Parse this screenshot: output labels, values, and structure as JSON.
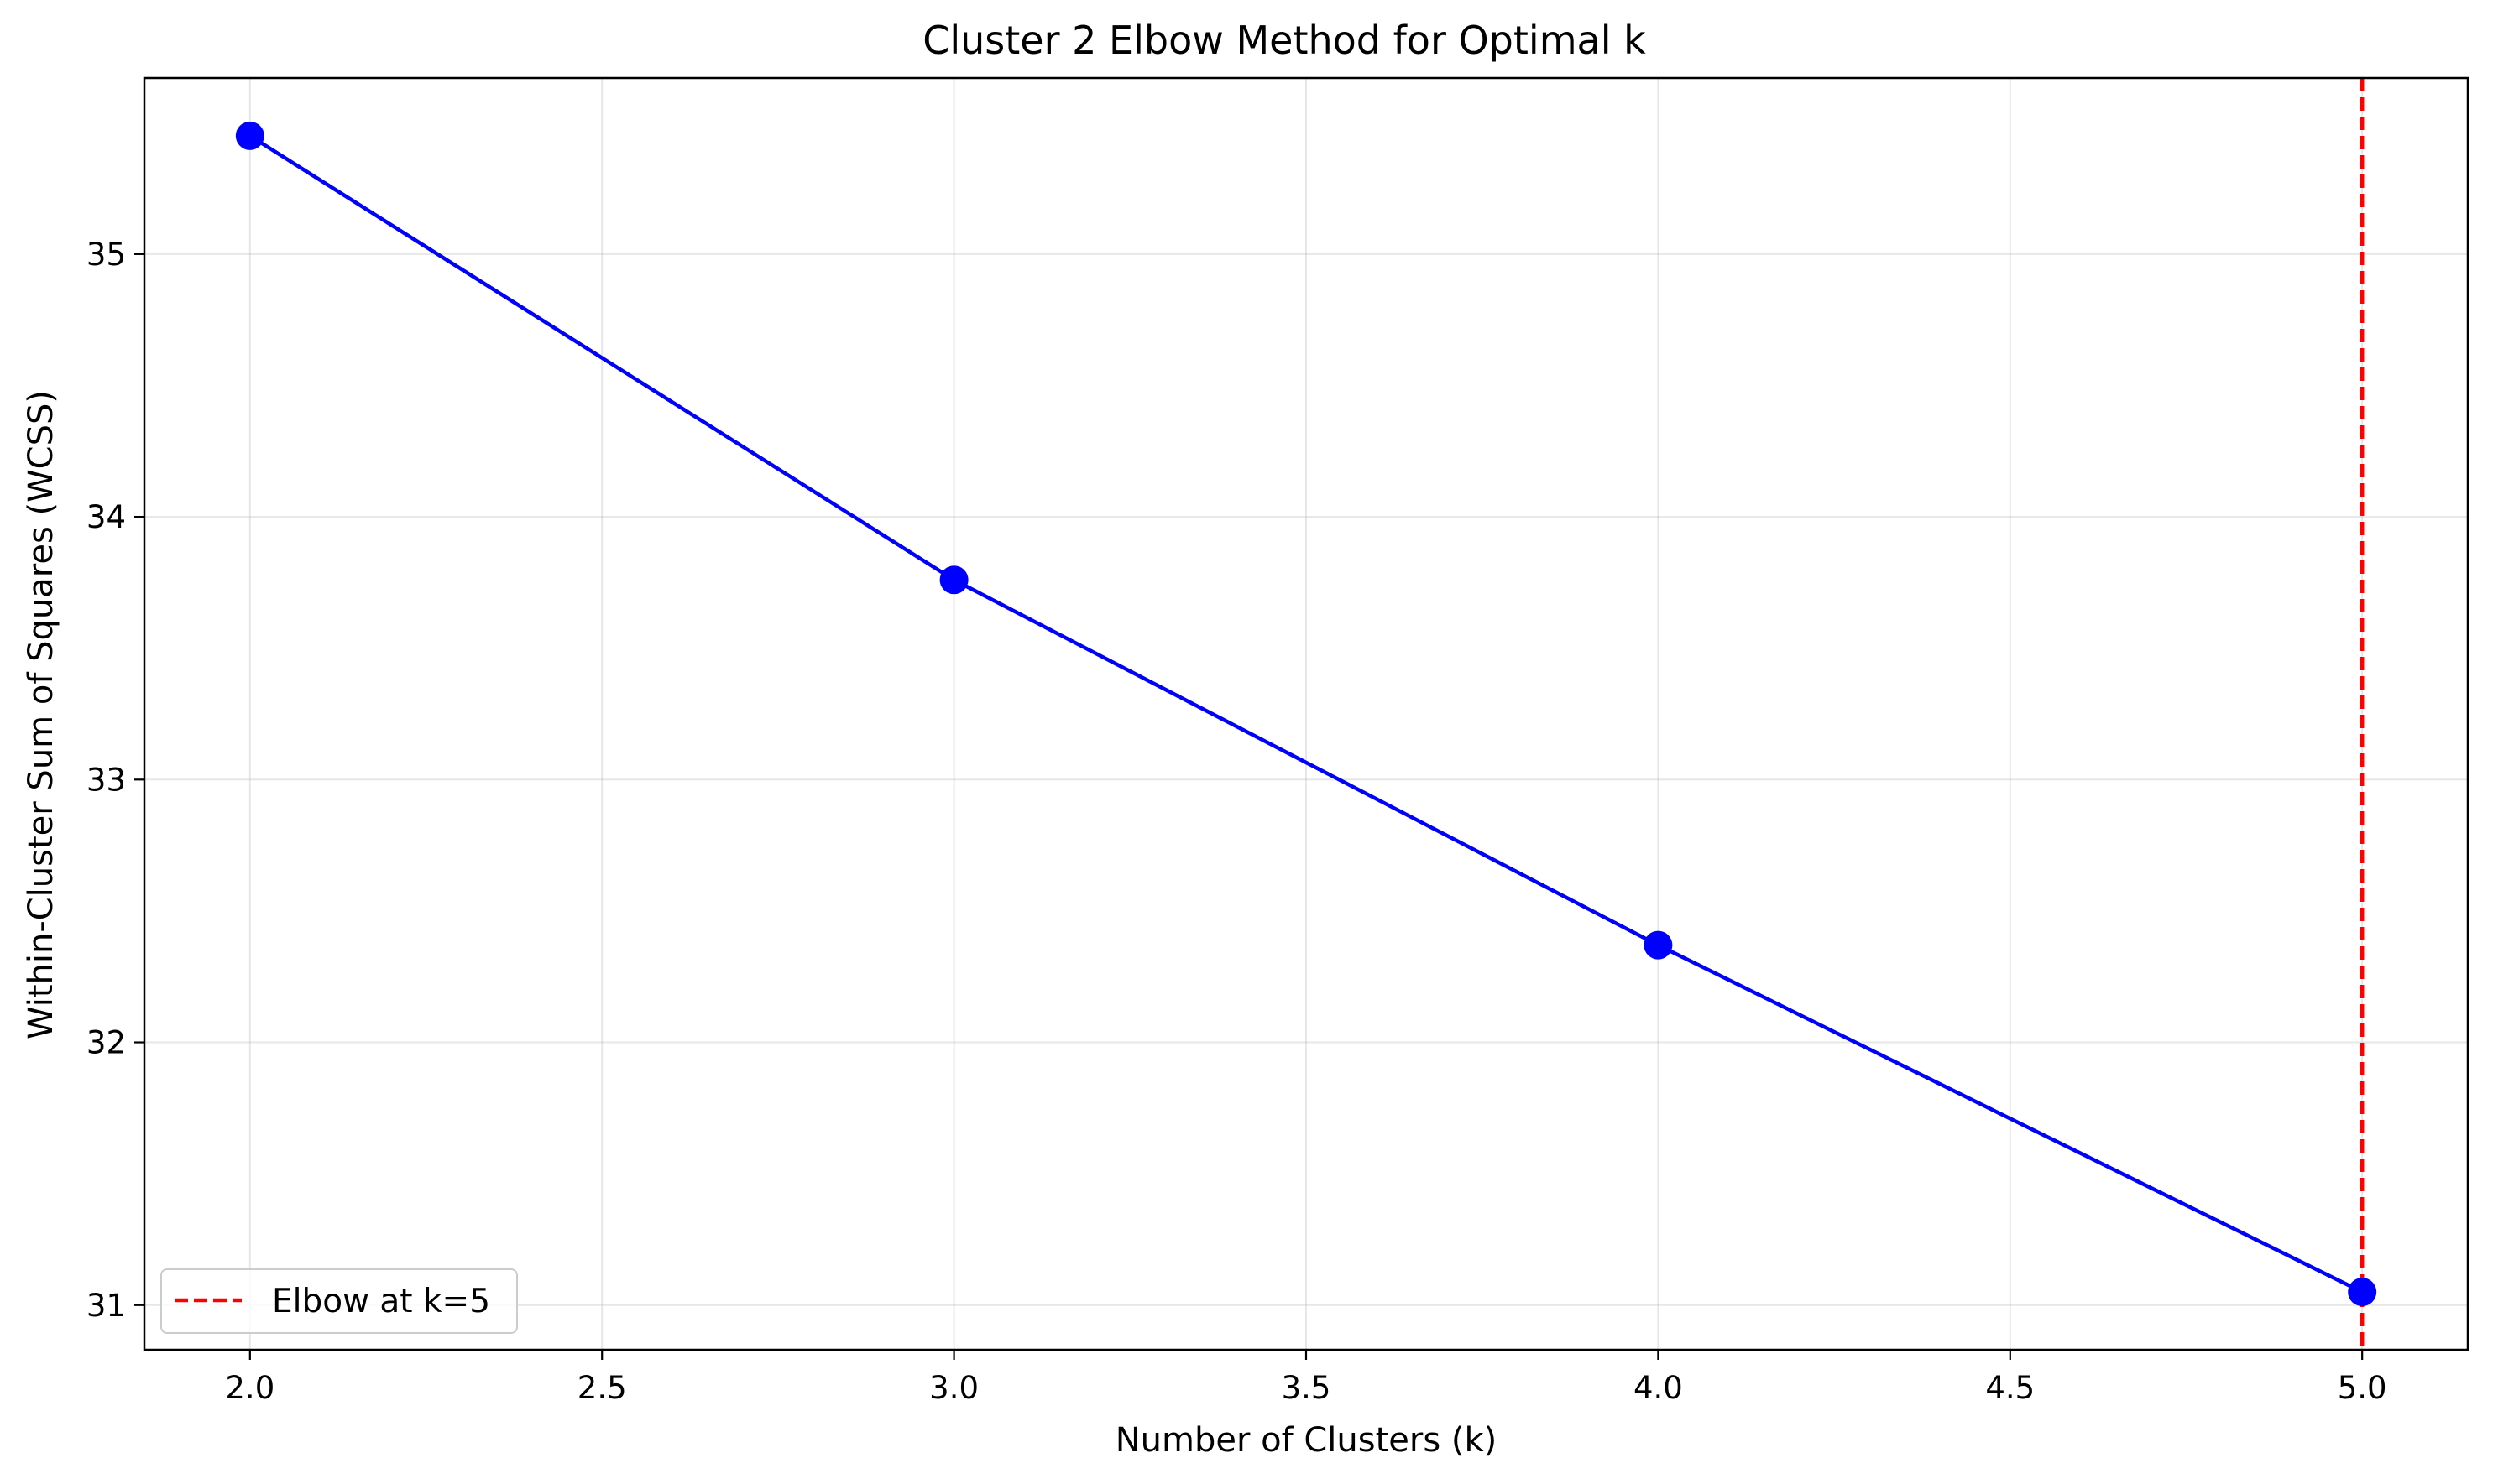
{
  "chart_data": {
    "type": "line",
    "title": "Cluster 2 Elbow Method for Optimal k",
    "xlabel": "Number of Clusters (k)",
    "ylabel": "Within-Cluster Sum of Squares (WCSS)",
    "xlim": [
      1.85,
      5.15
    ],
    "ylim": [
      30.83,
      35.67
    ],
    "xticks": [
      2.0,
      2.5,
      3.0,
      3.5,
      4.0,
      4.5,
      5.0
    ],
    "xtick_labels": [
      "2.0",
      "2.5",
      "3.0",
      "3.5",
      "4.0",
      "4.5",
      "5.0"
    ],
    "yticks": [
      31,
      32,
      33,
      34,
      35
    ],
    "ytick_labels": [
      "31",
      "32",
      "33",
      "34",
      "35"
    ],
    "grid": true,
    "series": [
      {
        "x": [
          2,
          3,
          4,
          5
        ],
        "y": [
          35.45,
          33.76,
          32.37,
          31.05
        ],
        "color": "#0000ff",
        "marker": "circle"
      }
    ],
    "vlines": [
      {
        "x": 5,
        "color": "#ff0000",
        "style": "dashed",
        "label": "Elbow at k=5"
      }
    ],
    "legend": {
      "position": "lower-left",
      "entries": [
        {
          "label": "Elbow at k=5",
          "color": "#ff0000",
          "style": "dashed"
        }
      ]
    }
  }
}
